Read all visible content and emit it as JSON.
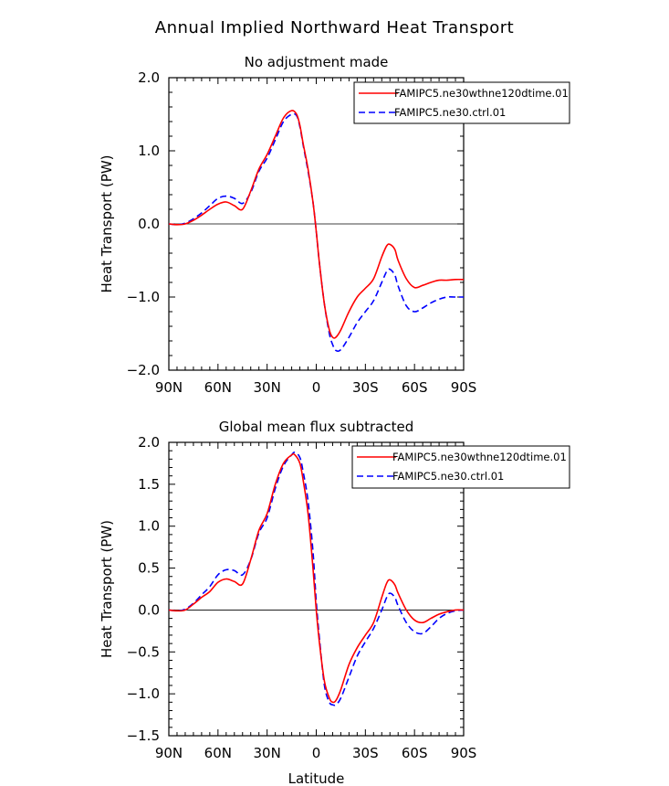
{
  "figure": {
    "title": "Annual Implied Northward Heat Transport"
  },
  "colors": {
    "series_1": "#ff0000",
    "series_2": "#0000ff",
    "axis": "#000000",
    "zero_line": "#000000"
  },
  "chart_data": [
    {
      "type": "line",
      "title": "No adjustment made",
      "xlabel": "",
      "ylabel": "Heat Transport (PW)",
      "xlim": [
        90,
        -90
      ],
      "ylim": [
        -2.0,
        2.0
      ],
      "x_ticks": [
        90,
        60,
        30,
        0,
        -30,
        -60,
        -90
      ],
      "x_tick_labels": [
        "90N",
        "60N",
        "30N",
        "0",
        "30S",
        "60S",
        "90S"
      ],
      "y_ticks": [
        2.0,
        1.0,
        0.0,
        -1.0,
        -2.0
      ],
      "y_tick_labels": [
        "2.0",
        "1.0",
        "0.0",
        "−1.0",
        "−2.0"
      ],
      "grid": false,
      "zero_line": true,
      "legend_position": "top-right",
      "series": [
        {
          "name": "FAMIPC5.ne30wthne120dtime.01",
          "color": "#ff0000",
          "style": "solid",
          "x": [
            90,
            85,
            80,
            75,
            70,
            65,
            60,
            55,
            50,
            45,
            40,
            35,
            30,
            25,
            20,
            15,
            12,
            10,
            8,
            5,
            2,
            0,
            -2,
            -5,
            -8,
            -10,
            -12,
            -15,
            -20,
            -25,
            -30,
            -35,
            -40,
            -43,
            -45,
            -48,
            -50,
            -55,
            -60,
            -65,
            -70,
            -75,
            -80,
            -85,
            -90
          ],
          "y": [
            0.0,
            -0.01,
            0.0,
            0.05,
            0.12,
            0.2,
            0.27,
            0.3,
            0.25,
            0.2,
            0.45,
            0.75,
            0.95,
            1.2,
            1.45,
            1.55,
            1.5,
            1.35,
            1.1,
            0.75,
            0.3,
            -0.1,
            -0.55,
            -1.1,
            -1.45,
            -1.55,
            -1.55,
            -1.45,
            -1.2,
            -1.0,
            -0.88,
            -0.75,
            -0.45,
            -0.3,
            -0.28,
            -0.35,
            -0.5,
            -0.75,
            -0.87,
            -0.84,
            -0.8,
            -0.77,
            -0.77,
            -0.76,
            -0.76
          ]
        },
        {
          "name": "FAMIPC5.ne30.ctrl.01",
          "color": "#0000ff",
          "style": "dashed",
          "x": [
            90,
            85,
            80,
            75,
            70,
            65,
            60,
            55,
            50,
            45,
            40,
            35,
            30,
            25,
            20,
            15,
            12,
            10,
            8,
            5,
            2,
            0,
            -2,
            -5,
            -8,
            -10,
            -12,
            -15,
            -20,
            -25,
            -30,
            -35,
            -40,
            -43,
            -45,
            -48,
            -50,
            -55,
            -60,
            -65,
            -70,
            -75,
            -80,
            -85,
            -90
          ],
          "y": [
            0.0,
            -0.01,
            0.01,
            0.07,
            0.15,
            0.25,
            0.35,
            0.38,
            0.35,
            0.28,
            0.43,
            0.72,
            0.9,
            1.15,
            1.4,
            1.5,
            1.48,
            1.33,
            1.08,
            0.72,
            0.3,
            -0.1,
            -0.55,
            -1.1,
            -1.5,
            -1.65,
            -1.73,
            -1.72,
            -1.55,
            -1.35,
            -1.2,
            -1.05,
            -0.8,
            -0.65,
            -0.62,
            -0.7,
            -0.85,
            -1.12,
            -1.2,
            -1.15,
            -1.08,
            -1.03,
            -1.0,
            -1.0,
            -1.0
          ]
        }
      ]
    },
    {
      "type": "line",
      "title": "Global mean flux subtracted",
      "xlabel": "Latitude",
      "ylabel": "Heat Transport (PW)",
      "xlim": [
        90,
        -90
      ],
      "ylim": [
        -1.5,
        2.0
      ],
      "x_ticks": [
        90,
        60,
        30,
        0,
        -30,
        -60,
        -90
      ],
      "x_tick_labels": [
        "90N",
        "60N",
        "30N",
        "0",
        "30S",
        "60S",
        "90S"
      ],
      "y_ticks": [
        2.0,
        1.5,
        1.0,
        0.5,
        0.0,
        -0.5,
        -1.0,
        -1.5
      ],
      "y_tick_labels": [
        "2.0",
        "1.5",
        "1.0",
        "0.5",
        "0.0",
        "−0.5",
        "−1.0",
        "−1.5"
      ],
      "grid": false,
      "zero_line": true,
      "legend_position": "top-right",
      "series": [
        {
          "name": "FAMIPC5.ne30wthne120dtime.01",
          "color": "#ff0000",
          "style": "solid",
          "x": [
            90,
            85,
            80,
            75,
            70,
            65,
            60,
            55,
            50,
            45,
            40,
            35,
            30,
            25,
            20,
            15,
            13,
            10,
            8,
            5,
            2,
            0,
            -2,
            -5,
            -8,
            -10,
            -12,
            -15,
            -20,
            -25,
            -30,
            -35,
            -40,
            -43,
            -45,
            -48,
            -50,
            -55,
            -60,
            -65,
            -70,
            -75,
            -80,
            -85,
            -90
          ],
          "y": [
            0.0,
            -0.01,
            0.0,
            0.07,
            0.15,
            0.22,
            0.33,
            0.37,
            0.34,
            0.31,
            0.6,
            0.95,
            1.15,
            1.5,
            1.75,
            1.85,
            1.85,
            1.75,
            1.55,
            1.15,
            0.5,
            0.0,
            -0.4,
            -0.85,
            -1.05,
            -1.1,
            -1.08,
            -0.95,
            -0.65,
            -0.45,
            -0.3,
            -0.15,
            0.15,
            0.32,
            0.36,
            0.3,
            0.2,
            0.0,
            -0.12,
            -0.15,
            -0.1,
            -0.05,
            -0.02,
            0.0,
            0.0
          ]
        },
        {
          "name": "FAMIPC5.ne30.ctrl.01",
          "color": "#0000ff",
          "style": "dashed",
          "x": [
            90,
            85,
            80,
            75,
            70,
            65,
            60,
            55,
            50,
            45,
            40,
            35,
            30,
            25,
            20,
            15,
            13,
            10,
            8,
            5,
            2,
            0,
            -2,
            -5,
            -8,
            -10,
            -12,
            -15,
            -20,
            -25,
            -30,
            -35,
            -40,
            -43,
            -45,
            -48,
            -50,
            -55,
            -60,
            -65,
            -70,
            -75,
            -80,
            -85,
            -90
          ],
          "y": [
            0.0,
            -0.01,
            0.01,
            0.08,
            0.18,
            0.28,
            0.42,
            0.48,
            0.47,
            0.42,
            0.6,
            0.92,
            1.1,
            1.45,
            1.72,
            1.85,
            1.88,
            1.82,
            1.65,
            1.3,
            0.7,
            0.1,
            -0.35,
            -0.9,
            -1.1,
            -1.13,
            -1.13,
            -1.05,
            -0.8,
            -0.55,
            -0.38,
            -0.22,
            0.0,
            0.15,
            0.2,
            0.15,
            0.05,
            -0.15,
            -0.26,
            -0.28,
            -0.2,
            -0.1,
            -0.04,
            -0.01,
            0.0
          ]
        }
      ]
    }
  ]
}
